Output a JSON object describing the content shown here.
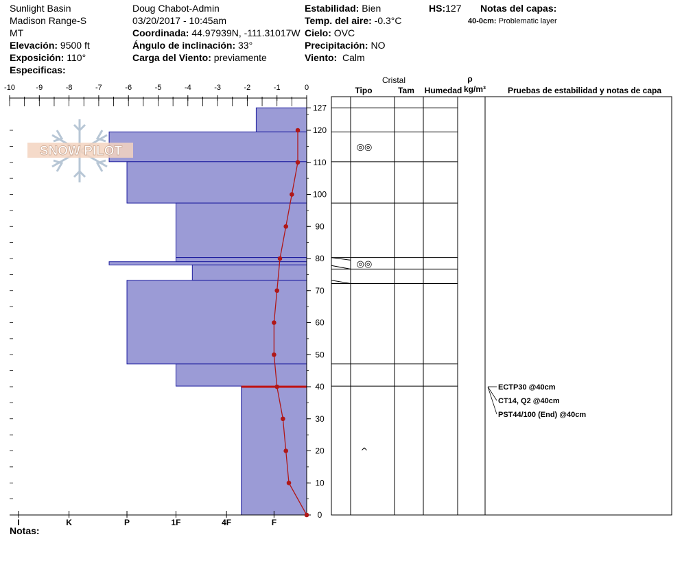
{
  "header": {
    "location1": "Sunlight Basin",
    "location2": "Madison Range-S",
    "location3": "MT",
    "elevacion_label": "Elevación:",
    "elevacion_value": "9500 ft",
    "exposicion_label": "Exposición:",
    "exposicion_value": "110°",
    "especificas_label": "Especificas:",
    "observer": "Doug Chabot-Admin",
    "datetime": "03/20/2017 - 10:45am",
    "coordinada_label": "Coordinada:",
    "coordinada_value": "44.97939N, -111.31017W",
    "angulo_label": "Ángulo de inclinación:",
    "angulo_value": "33°",
    "viento_carga_label": "Carga del Viento:",
    "viento_carga_value": "previamente",
    "estabilidad_label": "Estabilidad:",
    "estabilidad_value": "Bien",
    "temp_label": "Temp. del aire:",
    "temp_value": "-0.3°C",
    "cielo_label": "Cielo:",
    "cielo_value": "OVC",
    "precip_label": "Precipitación:",
    "precip_value": "NO",
    "viento_label": "Viento:",
    "viento_value": "Calm",
    "hs_label": "HS:",
    "hs_value": "127",
    "notas_capas_label": "Notas del capas:",
    "notas_capas_range": "40-0cm:",
    "notas_capas_text": "Problematic layer",
    "notas_label": "Notas:"
  },
  "logo_text": "SNOW PILOT",
  "colors": {
    "bar_fill": "#9b9bd6",
    "bar_stroke": "#1c1c9e",
    "temp_line": "#b01818",
    "weak_layer": "#c01010"
  },
  "table_headers": {
    "cristal": "Cristal",
    "tipo": "Tipo",
    "tam": "Tam",
    "humedad": "Humedad",
    "rho": "ρ",
    "density_unit": "kg/m³",
    "pruebas": "Pruebas de estabilidad y notas de capa"
  },
  "chart_data": {
    "type": "snow-profile",
    "temperature_axis": {
      "ticks": [
        "-10",
        "-9",
        "-8",
        "-7",
        "-6",
        "-5",
        "-4",
        "-3",
        "-2",
        "-1",
        "0"
      ],
      "range": [
        -10,
        0
      ]
    },
    "hardness_ticks": [
      "I",
      "K",
      "P",
      "1F",
      "4F",
      "F"
    ],
    "height_ticks": [
      "127",
      "120",
      "110",
      "100",
      "90",
      "80",
      "70",
      "60",
      "50",
      "40",
      "30",
      "20",
      "10",
      "0"
    ],
    "height_range": [
      0,
      127
    ],
    "hardness_layers": [
      {
        "top": 127,
        "bottom": 119.5,
        "temp_equiv": -1.7
      },
      {
        "top": 119.5,
        "bottom": 110.2,
        "temp_equiv": -6.65
      },
      {
        "top": 110.2,
        "bottom": 97.3,
        "temp_equiv": -6.05
      },
      {
        "top": 97.3,
        "bottom": 80.3,
        "temp_equiv": -4.4
      },
      {
        "top": 80.3,
        "bottom": 79.0,
        "temp_equiv": -4.4
      },
      {
        "top": 79.0,
        "bottom": 78.0,
        "temp_equiv": -6.65
      },
      {
        "top": 78.0,
        "bottom": 73.2,
        "temp_equiv": -3.85
      },
      {
        "top": 73.2,
        "bottom": 47.1,
        "temp_equiv": -6.05
      },
      {
        "top": 47.1,
        "bottom": 40.2,
        "temp_equiv": -4.4
      },
      {
        "top": 40.2,
        "bottom": 0,
        "temp_equiv": -2.2
      }
    ],
    "temperature_profile": [
      {
        "height": 120,
        "temp": -0.3
      },
      {
        "height": 110,
        "temp": -0.3
      },
      {
        "height": 100,
        "temp": -0.5
      },
      {
        "height": 90,
        "temp": -0.7
      },
      {
        "height": 80,
        "temp": -0.9
      },
      {
        "height": 70,
        "temp": -1.0
      },
      {
        "height": 60,
        "temp": -1.1
      },
      {
        "height": 50,
        "temp": -1.1
      },
      {
        "height": 40,
        "temp": -1.0
      },
      {
        "height": 30,
        "temp": -0.8
      },
      {
        "height": 20,
        "temp": -0.7
      },
      {
        "height": 10,
        "temp": -0.6
      },
      {
        "height": 0,
        "temp": 0.0
      }
    ],
    "weak_layer_height": 40,
    "grain_symbols": [
      {
        "height": 115,
        "symbol": "◎◎"
      },
      {
        "height": 78.5,
        "symbol": "◎◎"
      },
      {
        "height": 20,
        "symbol": "^"
      }
    ],
    "stability_tests": [
      {
        "height": 40,
        "text": "ECTP30 @40cm"
      },
      {
        "height": 40,
        "text": "CT14, Q2 @40cm"
      },
      {
        "height": 40,
        "text": "PST44/100 (End) @40cm"
      }
    ]
  }
}
